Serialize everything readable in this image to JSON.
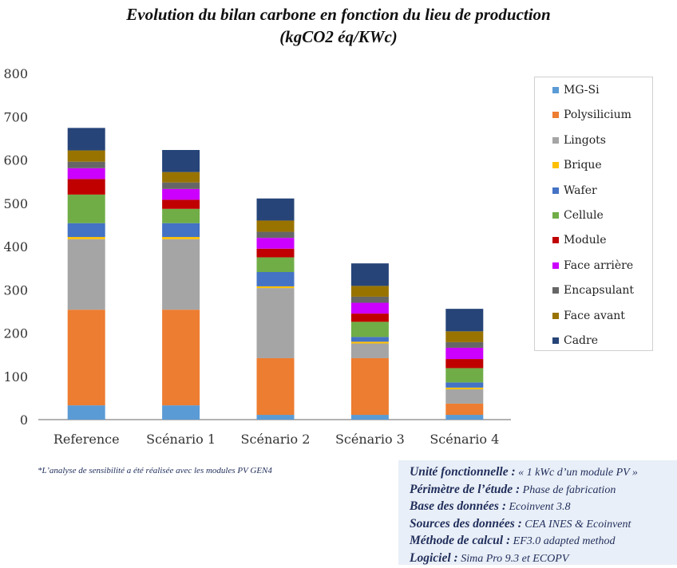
{
  "chart_data": {
    "type": "bar",
    "stacked": true,
    "title": "Evolution du bilan carbone en fonction du lieu de production",
    "subtitle": "(kgCO2 éq/KWc)",
    "xlabel": "",
    "ylabel": "",
    "ylim": [
      0,
      800
    ],
    "yticks": [
      0,
      100,
      200,
      300,
      400,
      500,
      600,
      700,
      800
    ],
    "grid": false,
    "legend_position": "right",
    "categories": [
      "Reference",
      "Scénario 1",
      "Scénario 2",
      "Scénario 3",
      "Scénario 4"
    ],
    "series": [
      {
        "name": "MG-Si",
        "color": "#5b9bd5",
        "values": [
          33,
          33,
          11,
          11,
          11
        ]
      },
      {
        "name": "Polysilicium",
        "color": "#ed7d31",
        "values": [
          221,
          221,
          131,
          131,
          26
        ]
      },
      {
        "name": "Lingots",
        "color": "#a5a5a5",
        "values": [
          163,
          163,
          162,
          34,
          33
        ]
      },
      {
        "name": "Brique",
        "color": "#ffc000",
        "values": [
          5,
          5,
          4,
          4,
          4
        ]
      },
      {
        "name": "Wafer",
        "color": "#4472c4",
        "values": [
          32,
          32,
          33,
          11,
          12
        ]
      },
      {
        "name": "Cellule",
        "color": "#70ad47",
        "values": [
          66,
          33,
          34,
          35,
          33
        ]
      },
      {
        "name": "Module",
        "color": "#c00000",
        "values": [
          36,
          21,
          20,
          19,
          21
        ]
      },
      {
        "name": "Face arrière",
        "color": "#cc00ff",
        "values": [
          25,
          25,
          25,
          25,
          26
        ]
      },
      {
        "name": "Encapsulant",
        "color": "#666666",
        "values": [
          15,
          15,
          14,
          14,
          13
        ]
      },
      {
        "name": "Face avant",
        "color": "#997300",
        "values": [
          26,
          24,
          26,
          25,
          25
        ]
      },
      {
        "name": "Cadre",
        "color": "#264478",
        "values": [
          52,
          51,
          51,
          52,
          52
        ]
      }
    ]
  },
  "footnote": "*L’analyse de sensibilité a été réalisée avec les modules PV GEN4",
  "info": [
    {
      "label": "Unité fonctionnelle :",
      "value": " « 1 kWc d’un module PV »"
    },
    {
      "label": "Périmètre de l’étude :",
      "value": " Phase de fabrication"
    },
    {
      "label": "Base des données :",
      "value": " Ecoinvent 3.8"
    },
    {
      "label": "Sources des données :",
      "value": " CEA INES & Ecoinvent"
    },
    {
      "label": "Méthode de calcul :",
      "value": " EF3.0 adapted method"
    },
    {
      "label": "Logiciel :",
      "value": " Sima Pro 9.3 et ECOPV"
    }
  ]
}
